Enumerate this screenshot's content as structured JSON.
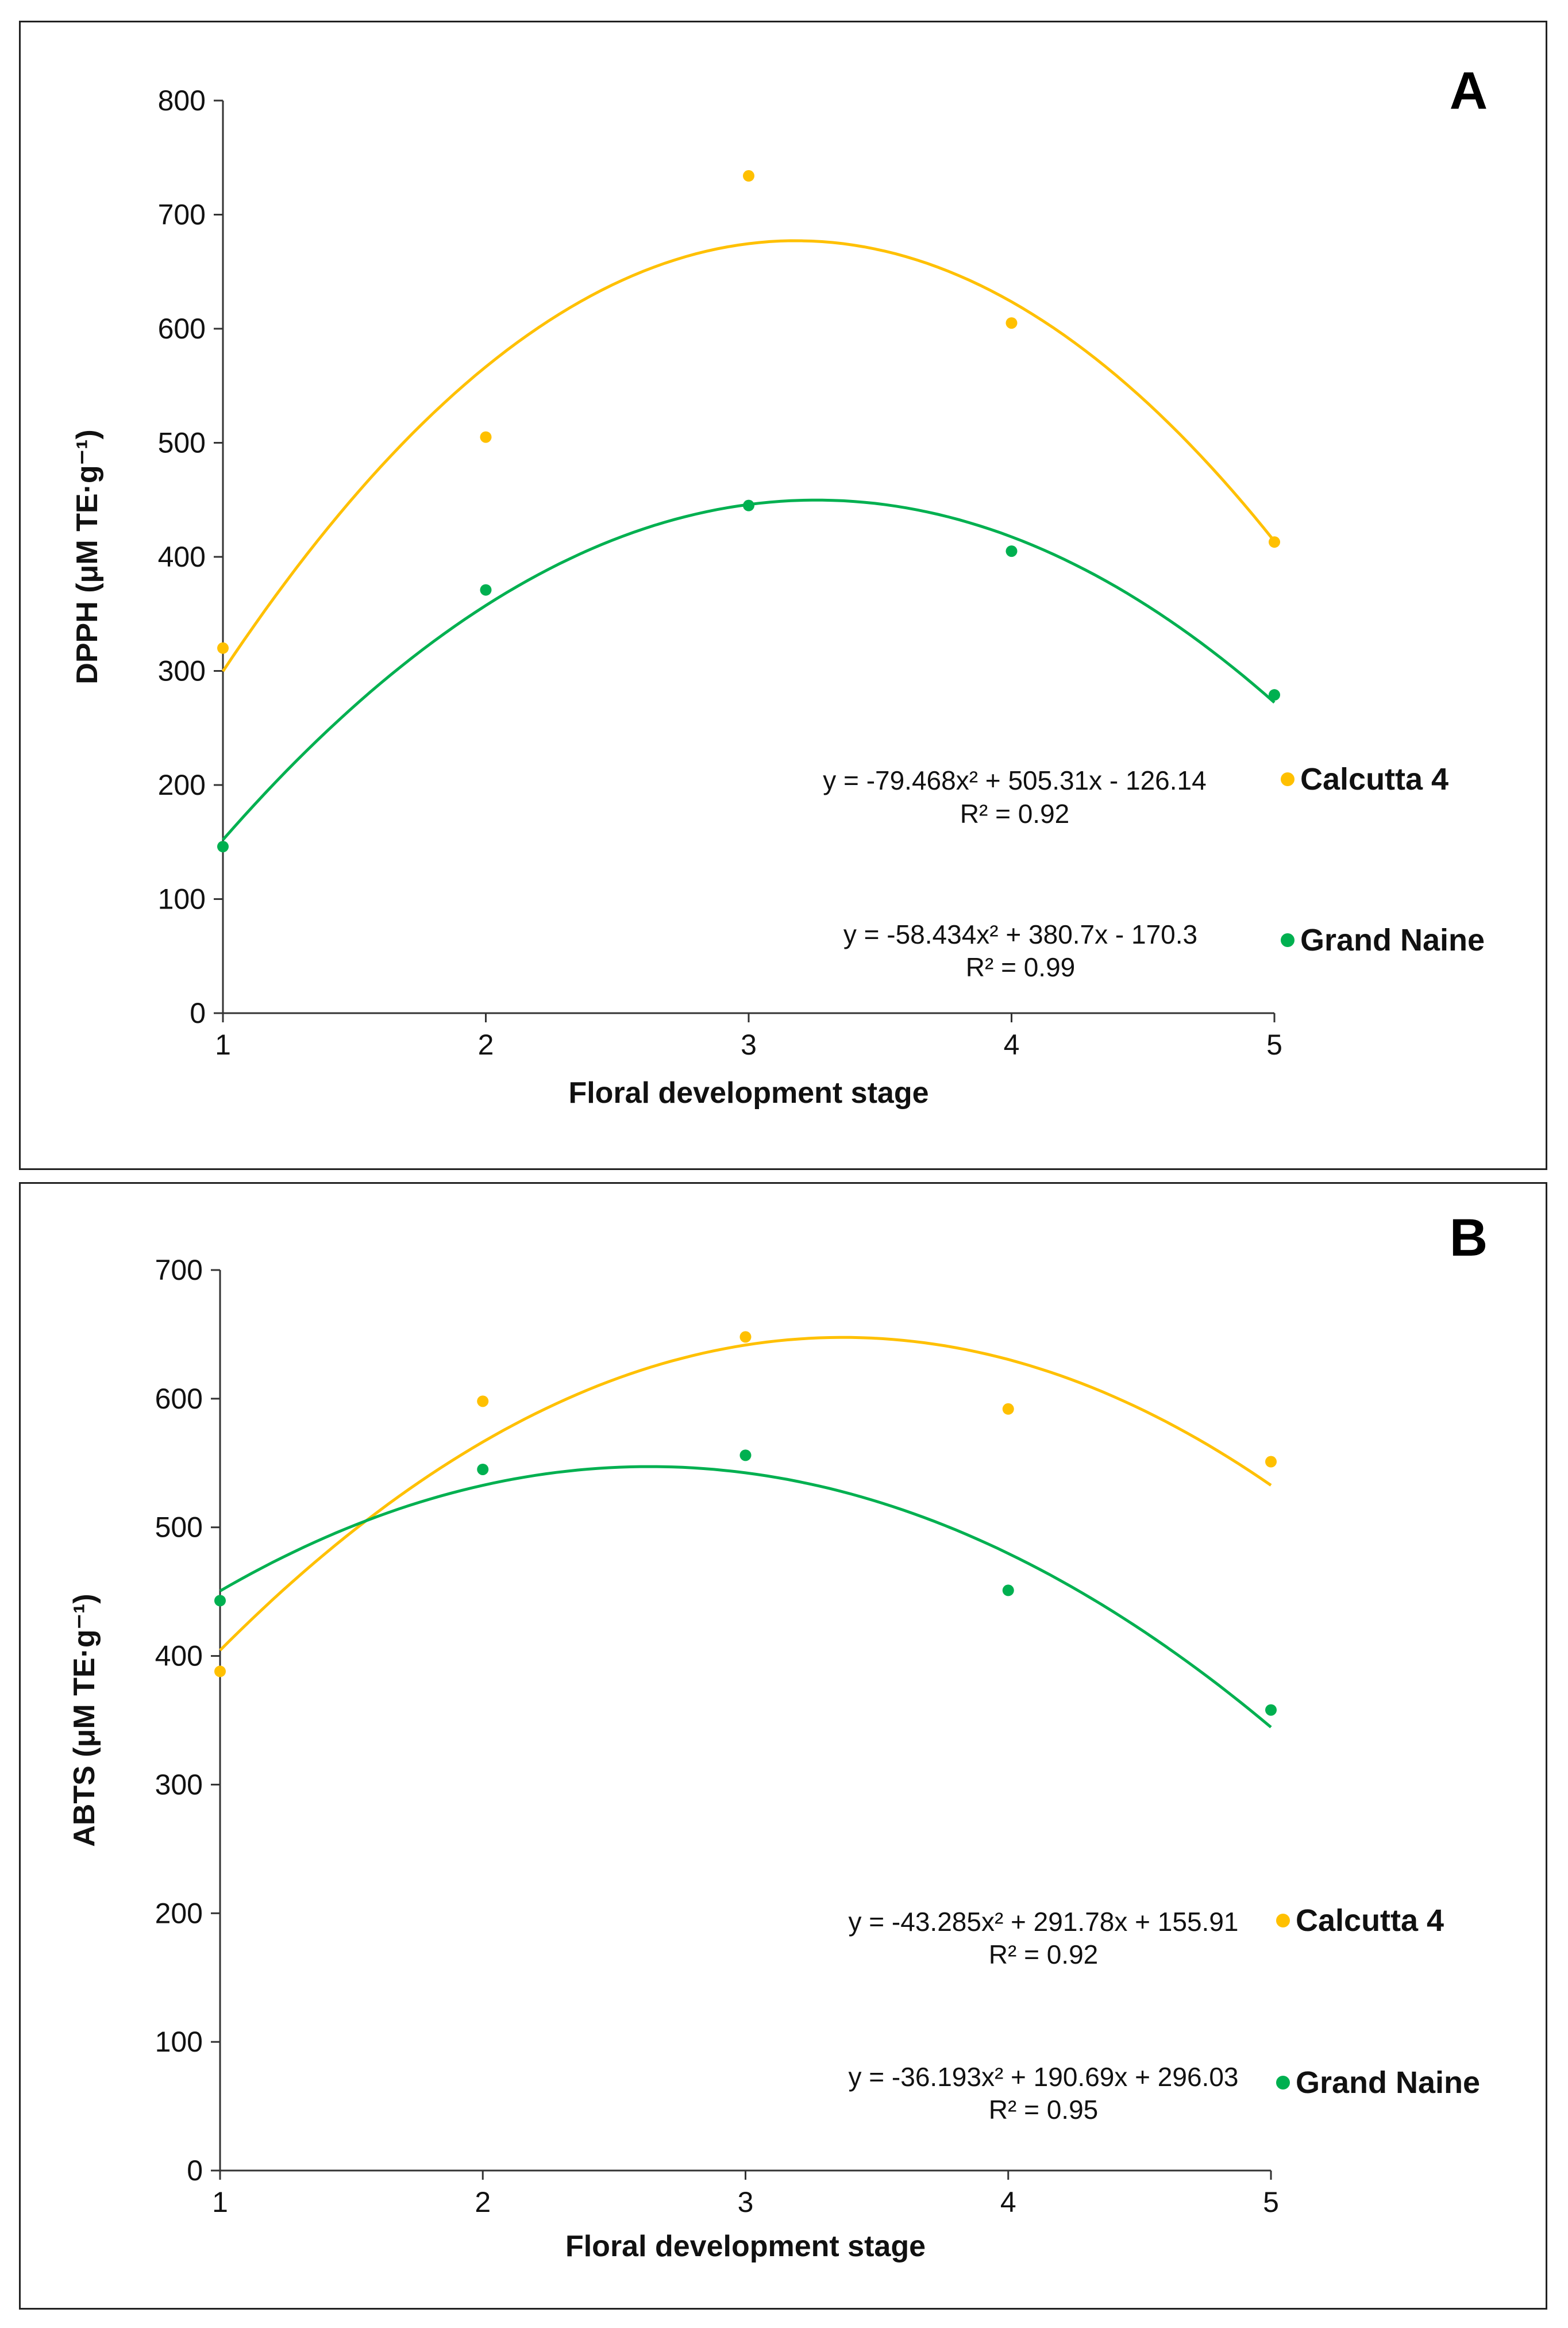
{
  "chart_data": [
    {
      "type": "scatter",
      "panel_label": "A",
      "xlabel": "Floral development stage",
      "ylabel": "DPPH (μM TE·g⁻¹)",
      "xlim": [
        1,
        5
      ],
      "ylim": [
        0,
        800
      ],
      "xticks": [
        1,
        2,
        3,
        4,
        5
      ],
      "yticks": [
        0,
        100,
        200,
        300,
        400,
        500,
        600,
        700,
        800
      ],
      "grid": false,
      "legend_position": "right",
      "series": [
        {
          "name": "Calcutta 4",
          "color": "#FFC000",
          "x": [
            1,
            2,
            3,
            4,
            5
          ],
          "values": [
            320,
            505,
            734,
            605,
            413
          ],
          "trend": {
            "a": -79.468,
            "b": 505.31,
            "c": -126.14
          },
          "equation": "y = -79.468x² + 505.31x - 126.14",
          "r2": "R² = 0.92"
        },
        {
          "name": "Grand Naine",
          "color": "#00B050",
          "x": [
            1,
            2,
            3,
            4,
            5
          ],
          "values": [
            146,
            371,
            445,
            405,
            279
          ],
          "trend": {
            "a": -58.434,
            "b": 380.7,
            "c": -170.3
          },
          "equation": "y = -58.434x² + 380.7x - 170.3",
          "r2": "R² = 0.99"
        }
      ]
    },
    {
      "type": "scatter",
      "panel_label": "B",
      "xlabel": "Floral development stage",
      "ylabel": "ABTS (μM TE·g⁻¹)",
      "xlim": [
        1,
        5
      ],
      "ylim": [
        0,
        700
      ],
      "xticks": [
        1,
        2,
        3,
        4,
        5
      ],
      "yticks": [
        0,
        100,
        200,
        300,
        400,
        500,
        600,
        700
      ],
      "grid": false,
      "legend_position": "right",
      "series": [
        {
          "name": "Calcutta 4",
          "color": "#FFC000",
          "x": [
            1,
            2,
            3,
            4,
            5
          ],
          "values": [
            388,
            598,
            648,
            592,
            551
          ],
          "trend": {
            "a": -43.285,
            "b": 291.78,
            "c": 155.91
          },
          "equation": "y = -43.285x² + 291.78x + 155.91",
          "r2": "R² = 0.92"
        },
        {
          "name": "Grand Naine",
          "color": "#00B050",
          "x": [
            1,
            2,
            3,
            4,
            5
          ],
          "values": [
            443,
            545,
            556,
            451,
            358
          ],
          "trend": {
            "a": -36.193,
            "b": 190.69,
            "c": 296.03
          },
          "equation": "y = -36.193x² + 190.69x + 296.03",
          "r2": "R² = 0.95"
        }
      ]
    }
  ]
}
